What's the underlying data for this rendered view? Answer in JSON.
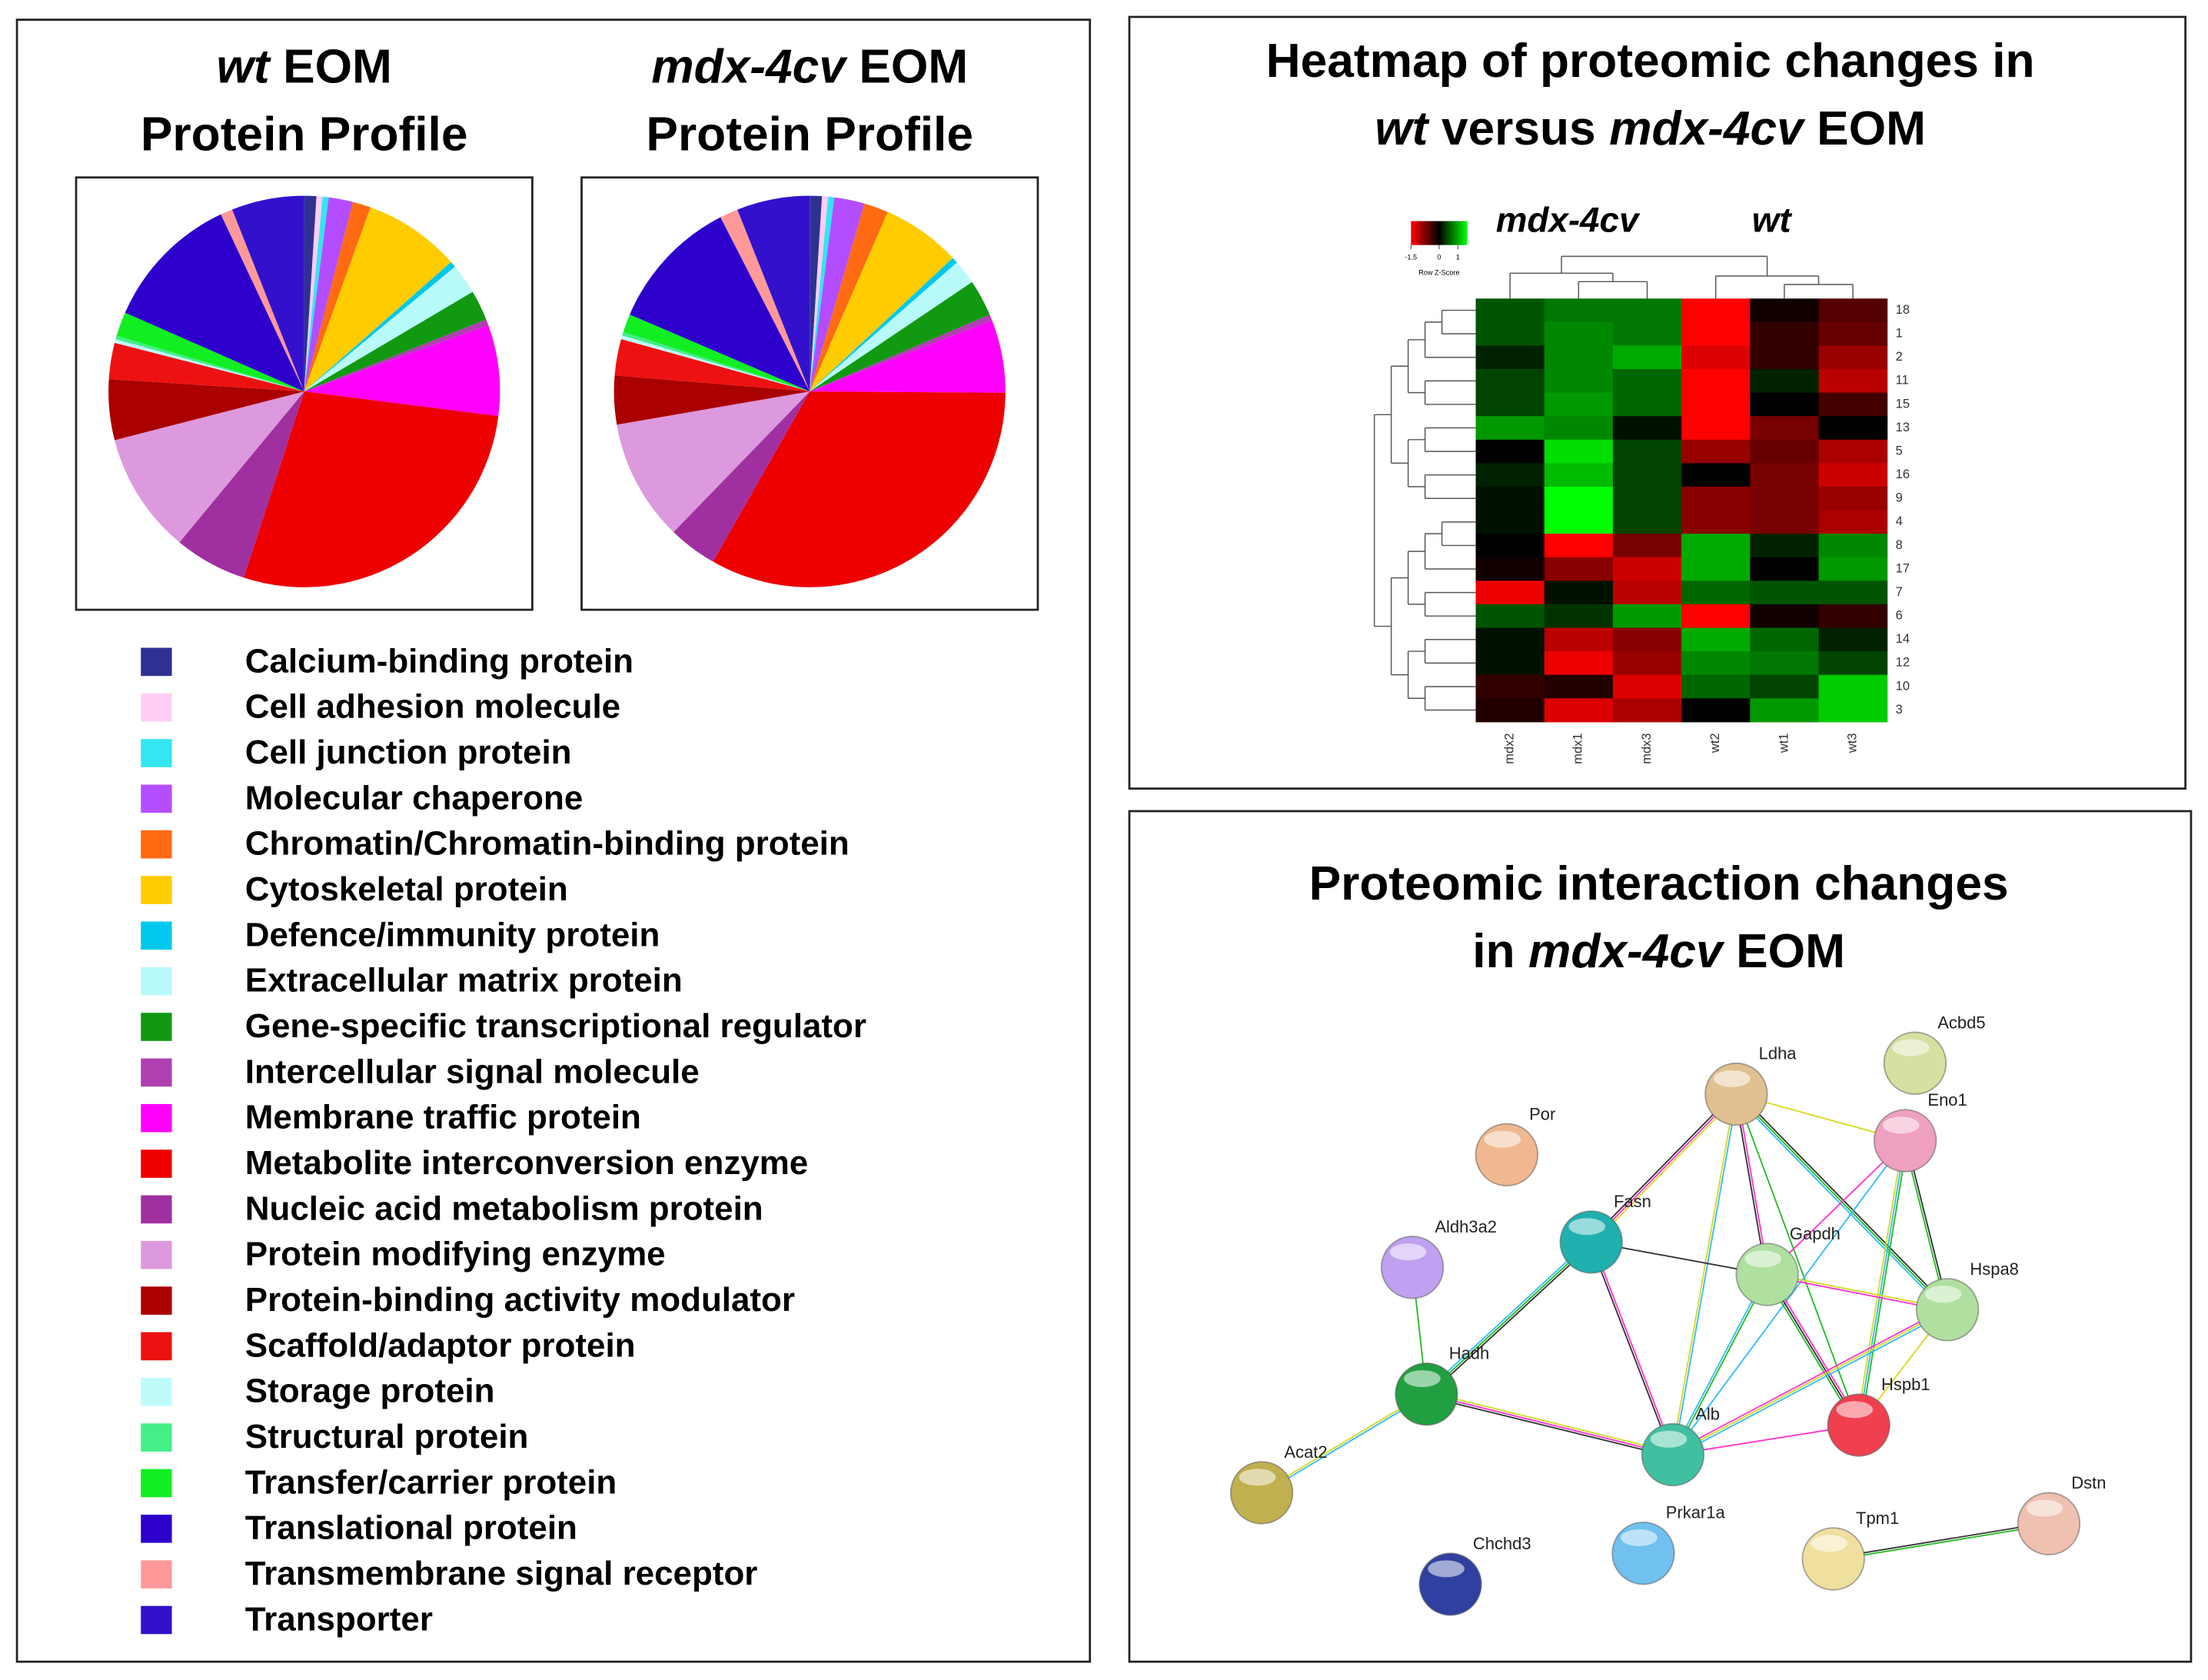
{
  "chart_data": [
    {
      "type": "pie",
      "title": [
        [
          {
            "text": "wt",
            "italic": true
          },
          {
            "text": "EOM"
          }
        ],
        [
          {
            "text": "Protein Profile"
          }
        ]
      ],
      "values": [
        1,
        0.5,
        0.5,
        2,
        1.5,
        8,
        0.5,
        2.5,
        2.5,
        0.5,
        7.5,
        28,
        6,
        10,
        5,
        3,
        0.3,
        0.3,
        2,
        11.4,
        1,
        6
      ]
    },
    {
      "type": "pie",
      "title": [
        [
          {
            "text": "mdx-4cv",
            "italic": true
          },
          {
            "text": "EOM"
          }
        ],
        [
          {
            "text": "Protein Profile"
          }
        ]
      ],
      "values": [
        1,
        0.5,
        0.5,
        2.5,
        2,
        6.5,
        0.5,
        2,
        3,
        0.5,
        6,
        33,
        4,
        10,
        4,
        3,
        0.3,
        0.3,
        1.5,
        11,
        1.5,
        6
      ]
    },
    {
      "type": "heatmap",
      "title": [
        [
          {
            "text": "Heatmap of proteomic changes in"
          }
        ],
        [
          {
            "text": "wt",
            "italic": true
          },
          {
            "text": "versus"
          },
          {
            "text": "mdx-4cv",
            "italic": true
          },
          {
            "text": "EOM"
          }
        ]
      ],
      "group_labels": [
        "mdx-4cv",
        "wt"
      ],
      "columns": [
        "mdx2",
        "mdx1",
        "mdx3",
        "wt2",
        "wt1",
        "wt3"
      ],
      "rows": [
        "18",
        "1",
        "2",
        "11",
        "15",
        "13",
        "5",
        "16",
        "9",
        "4",
        "8",
        "17",
        "7",
        "6",
        "14",
        "12",
        "10",
        "3"
      ],
      "values": [
        [
          0.5,
          0.7,
          0.7,
          -1.5,
          -0.1,
          -0.5
        ],
        [
          0.5,
          0.8,
          0.7,
          -1.5,
          -0.3,
          -0.6
        ],
        [
          0.2,
          0.8,
          1.0,
          -1.3,
          -0.3,
          -0.9
        ],
        [
          0.4,
          0.8,
          0.6,
          -1.5,
          0.2,
          -1.1
        ],
        [
          0.4,
          0.9,
          0.6,
          -1.6,
          0,
          -0.4
        ],
        [
          0.9,
          0.8,
          0.1,
          -1.6,
          -0.7,
          0
        ],
        [
          0,
          1.3,
          0.4,
          -0.9,
          -0.6,
          -1.0
        ],
        [
          0.2,
          1.1,
          0.4,
          0,
          -0.7,
          -1.2
        ],
        [
          0.1,
          1.5,
          0.4,
          -0.8,
          -0.7,
          -0.9
        ],
        [
          0.1,
          1.5,
          0.4,
          -0.8,
          -0.7,
          -1.0
        ],
        [
          0,
          -1.5,
          -0.7,
          1.0,
          0.2,
          0.8
        ],
        [
          -0.1,
          -0.8,
          -1.2,
          1.0,
          0,
          0.9
        ],
        [
          -1.4,
          0.1,
          -1.1,
          0.6,
          0.5,
          0.5
        ],
        [
          0.5,
          0.3,
          0.9,
          -1.6,
          -0.1,
          -0.3
        ],
        [
          0.1,
          -1.1,
          -0.8,
          1.0,
          0.6,
          0.2
        ],
        [
          0.1,
          -1.4,
          -0.9,
          0.8,
          0.7,
          0.4
        ],
        [
          -0.3,
          -0.2,
          -1.3,
          0.6,
          0.4,
          1.2
        ],
        [
          -0.2,
          -1.3,
          -1.0,
          0,
          0.9,
          1.2
        ]
      ],
      "colorbar": {
        "title": "Row Z-Score",
        "lim": [
          -1.5,
          1.5
        ],
        "ticks": [
          -1.5,
          0,
          1
        ],
        "colors": [
          "#ff0000",
          "#000000",
          "#00ff00"
        ]
      }
    }
  ],
  "legend": {
    "categories": [
      "Calcium-binding protein",
      "Cell adhesion molecule",
      "Cell junction protein",
      "Molecular chaperone",
      "Chromatin/Chromatin-binding protein",
      "Cytoskeletal protein",
      "Defence/immunity protein",
      "Extracellular matrix protein",
      "Gene-specific transcriptional regulator",
      "Intercellular signal molecule",
      "Membrane traffic protein",
      "Metabolite interconversion enzyme",
      "Nucleic acid metabolism protein",
      "Protein modifying enzyme",
      "Protein-binding activity modulator",
      "Scaffold/adaptor protein",
      "Storage protein",
      "Structural protein",
      "Transfer/carrier protein",
      "Translational protein",
      "Transmembrane signal receptor",
      "Transporter"
    ],
    "colors": [
      "#2e3192",
      "#ffccf5",
      "#33e6f0",
      "#b44dff",
      "#ff6a13",
      "#ffcc00",
      "#00c8ec",
      "#b8fafa",
      "#119911",
      "#b03fb0",
      "#ff00ff",
      "#ee0000",
      "#a030a0",
      "#dd99dd",
      "#aa0000",
      "#ee1111",
      "#c0fbfb",
      "#44ee88",
      "#11ee22",
      "#2e00cc",
      "#ff9999",
      "#3311cc"
    ]
  },
  "network": {
    "title": [
      [
        {
          "text": "Proteomic interaction changes"
        }
      ],
      [
        {
          "text": "in"
        },
        {
          "text": "mdx-4cv",
          "italic": true
        },
        {
          "text": "EOM"
        }
      ]
    ],
    "nodes": [
      {
        "label": "Ldha",
        "color": "#e0c090"
      },
      {
        "label": "Acbd5",
        "color": "#d6e0a0"
      },
      {
        "label": "Eno1",
        "color": "#f0a0c0"
      },
      {
        "label": "Por",
        "color": "#f0b890"
      },
      {
        "label": "Fasn",
        "color": "#20b0b0"
      },
      {
        "label": "Gapdh",
        "color": "#b0e0a0"
      },
      {
        "label": "Aldh3a2",
        "color": "#c0a0f0"
      },
      {
        "label": "Hspa8",
        "color": "#b0e0a0"
      },
      {
        "label": "Hadh",
        "color": "#20a040"
      },
      {
        "label": "Hspb1",
        "color": "#f04050"
      },
      {
        "label": "Alb",
        "color": "#40c0a0"
      },
      {
        "label": "Acat2",
        "color": "#c0b050"
      },
      {
        "label": "Prkar1a",
        "color": "#70c0f0"
      },
      {
        "label": "Chchd3",
        "color": "#3040a0"
      },
      {
        "label": "Tpm1",
        "color": "#f0e0a0"
      },
      {
        "label": "Dstn",
        "color": "#f0c0b0"
      }
    ]
  }
}
